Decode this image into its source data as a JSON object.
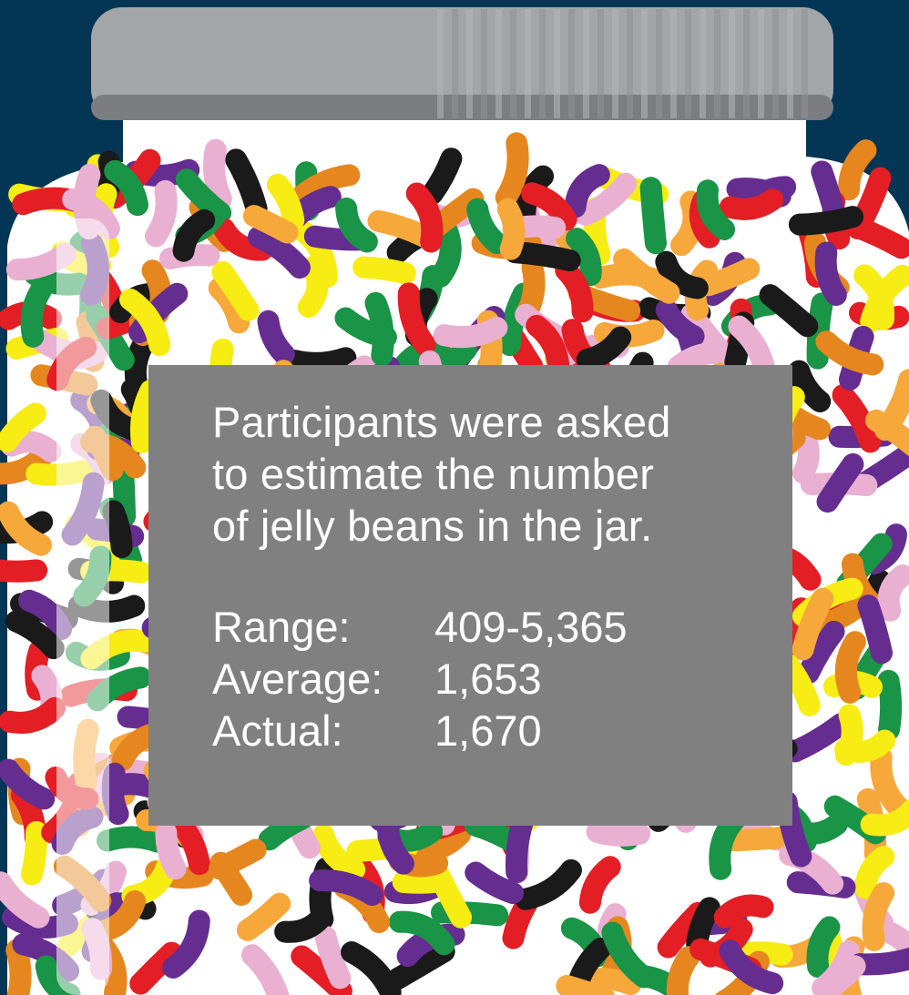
{
  "scene": {
    "background_color": "#033654",
    "lid_color": "#a3a6a9",
    "jar_color": "#ffffff",
    "bean_colors": [
      "#e31e24",
      "#f7ec13",
      "#e9b0d2",
      "#f7a83b",
      "#1a9446",
      "#1a1a1a",
      "#662d91",
      "#e5871e"
    ]
  },
  "panel": {
    "background": "#808080",
    "intro_lines": [
      "Participants were asked",
      "to estimate the number",
      "of jelly beans in the jar."
    ],
    "stats": [
      {
        "label": "Range:",
        "value": "409-5,365"
      },
      {
        "label": "Average:",
        "value": "1,653"
      },
      {
        "label": "Actual:",
        "value": "1,670"
      }
    ]
  }
}
